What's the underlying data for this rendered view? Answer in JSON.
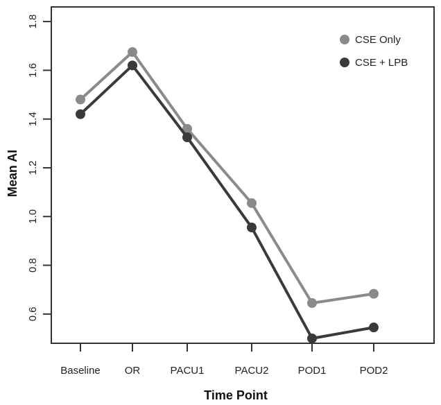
{
  "chart_data": {
    "type": "line",
    "title": "",
    "xlabel": "Time Point",
    "ylabel": "Mean AI",
    "categories": [
      "Baseline",
      "OR",
      "PACU1",
      "PACU2",
      "POD1",
      "POD2"
    ],
    "ylim": [
      0.48,
      1.86
    ],
    "yticks": [
      0.6,
      0.8,
      1.0,
      1.2,
      1.4,
      1.6,
      1.8
    ],
    "ytick_labels": [
      "0.6",
      "0.8",
      "1.0",
      "1.2",
      "1.4",
      "1.6",
      "1.8"
    ],
    "grid": false,
    "legend_position": "top-right",
    "series": [
      {
        "name": "CSE Only",
        "color": "#8a8a8a",
        "values": [
          1.48,
          1.675,
          1.36,
          1.055,
          0.645,
          0.683
        ]
      },
      {
        "name": "CSE + LPB",
        "color": "#3a3a3a",
        "values": [
          1.42,
          1.62,
          1.325,
          0.955,
          0.5,
          0.545
        ]
      }
    ]
  }
}
